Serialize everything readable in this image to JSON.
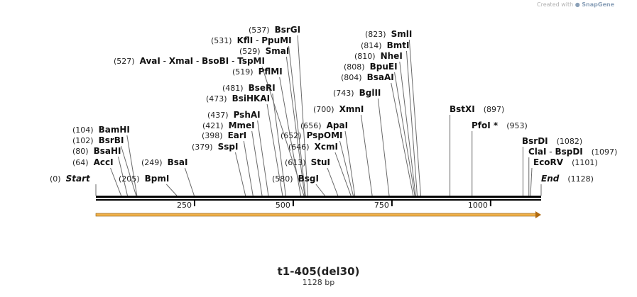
{
  "credit": {
    "prefix": "Created with",
    "brand": "SnapGene"
  },
  "title": "t1-405(del30)",
  "length_label": "1128 bp",
  "sequence": {
    "length": 1128,
    "ticks": [
      250,
      500,
      750,
      1000
    ]
  },
  "feature": {
    "name": "arrow",
    "start": 1,
    "end": 1128,
    "strand": "forward",
    "color": "#f0b14a"
  },
  "colors": {
    "backbone": "#000000",
    "feature": "#f0b14a",
    "cut": "#6a6a6a"
  },
  "sites": [
    {
      "pos": 0,
      "name": "Start",
      "special": true
    },
    {
      "pos": 64,
      "name": "AccI"
    },
    {
      "pos": 80,
      "name": "BsaHI"
    },
    {
      "pos": 102,
      "name": "BsrBI"
    },
    {
      "pos": 104,
      "name": "BamHI"
    },
    {
      "pos": 205,
      "name": "BpmI"
    },
    {
      "pos": 249,
      "name": "BsaI"
    },
    {
      "pos": 379,
      "name": "SspI"
    },
    {
      "pos": 398,
      "name": "EarI"
    },
    {
      "pos": 421,
      "name": "MmeI"
    },
    {
      "pos": 437,
      "name": "PshAI"
    },
    {
      "pos": 473,
      "name": "BsiHKAI"
    },
    {
      "pos": 481,
      "name": "BseRI"
    },
    {
      "pos": 519,
      "name": "PflMI"
    },
    {
      "pos": 527,
      "name": "AvaI",
      "aliases": [
        "XmaI",
        "BsoBI",
        "TspMI"
      ]
    },
    {
      "pos": 529,
      "name": "SmaI"
    },
    {
      "pos": 531,
      "name": "KflI",
      "aliases": [
        "PpuMI"
      ]
    },
    {
      "pos": 537,
      "name": "BsrGI"
    },
    {
      "pos": 580,
      "name": "BsgI"
    },
    {
      "pos": 613,
      "name": "StuI"
    },
    {
      "pos": 646,
      "name": "XcmI"
    },
    {
      "pos": 652,
      "name": "PspOMI"
    },
    {
      "pos": 656,
      "name": "ApaI"
    },
    {
      "pos": 700,
      "name": "XmnI"
    },
    {
      "pos": 743,
      "name": "BglII"
    },
    {
      "pos": 804,
      "name": "BsaAI"
    },
    {
      "pos": 808,
      "name": "BpuEI"
    },
    {
      "pos": 810,
      "name": "NheI"
    },
    {
      "pos": 814,
      "name": "BmtI"
    },
    {
      "pos": 823,
      "name": "SmlI"
    },
    {
      "pos": 897,
      "name": "BstXI"
    },
    {
      "pos": 953,
      "name": "PfoI *"
    },
    {
      "pos": 1082,
      "name": "BsrDI"
    },
    {
      "pos": 1097,
      "name": "ClaI",
      "aliases": [
        "BspDI"
      ]
    },
    {
      "pos": 1101,
      "name": "EcoRV"
    },
    {
      "pos": 1128,
      "name": "End",
      "special": true
    }
  ]
}
